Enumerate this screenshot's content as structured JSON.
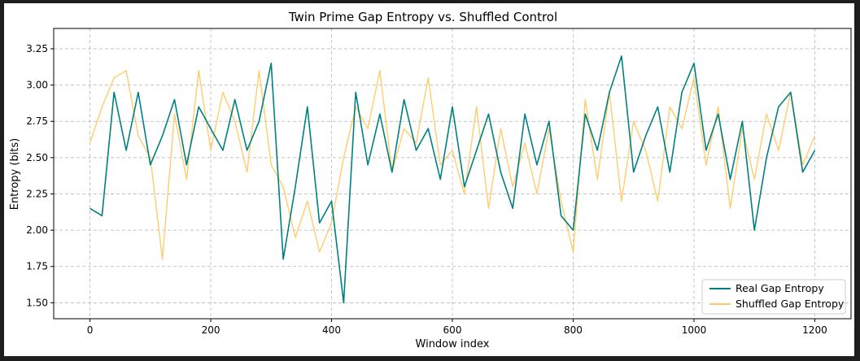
{
  "chart_data": {
    "type": "line",
    "title": "Twin Prime Gap Entropy vs. Shuffled Control",
    "xlabel": "Window index",
    "ylabel": "Entropy (bits)",
    "xlim": [
      -60,
      1260
    ],
    "ylim": [
      1.39,
      3.39
    ],
    "xticks": [
      0,
      200,
      400,
      600,
      800,
      1000,
      1200
    ],
    "yticks": [
      1.5,
      1.75,
      2.0,
      2.25,
      2.5,
      2.75,
      3.0,
      3.25
    ],
    "grid": true,
    "legend": "lower-right",
    "series": [
      {
        "name": "Real Gap Entropy",
        "color": "#008080",
        "x": [
          0,
          20,
          40,
          60,
          80,
          100,
          120,
          140,
          160,
          180,
          200,
          220,
          240,
          260,
          280,
          300,
          320,
          340,
          360,
          380,
          400,
          420,
          440,
          460,
          480,
          500,
          520,
          540,
          560,
          580,
          600,
          620,
          640,
          660,
          680,
          700,
          720,
          740,
          760,
          780,
          800,
          820,
          840,
          860,
          880,
          900,
          920,
          940,
          960,
          980,
          1000,
          1020,
          1040,
          1060,
          1080,
          1100,
          1120,
          1140,
          1160,
          1180,
          1200
        ],
        "y": [
          2.15,
          2.1,
          2.95,
          2.55,
          2.95,
          2.45,
          2.65,
          2.9,
          2.45,
          2.85,
          2.7,
          2.55,
          2.9,
          2.55,
          2.75,
          3.15,
          1.8,
          2.3,
          2.85,
          2.05,
          2.2,
          1.5,
          2.95,
          2.45,
          2.8,
          2.4,
          2.9,
          2.55,
          2.7,
          2.35,
          2.85,
          2.3,
          2.55,
          2.8,
          2.4,
          2.15,
          2.8,
          2.45,
          2.75,
          2.1,
          2.0,
          2.8,
          2.55,
          2.95,
          3.2,
          2.4,
          2.65,
          2.85,
          2.4,
          2.95,
          3.15,
          2.55,
          2.8,
          2.35,
          2.75,
          2.0,
          2.5,
          2.85,
          2.95,
          2.4,
          2.55
        ]
      },
      {
        "name": "Shuffled Gap Entropy",
        "color": "#ffc966",
        "x": [
          0,
          20,
          40,
          60,
          80,
          100,
          120,
          140,
          160,
          180,
          200,
          220,
          240,
          260,
          280,
          300,
          320,
          340,
          360,
          380,
          400,
          420,
          440,
          460,
          480,
          500,
          520,
          540,
          560,
          580,
          600,
          620,
          640,
          660,
          680,
          700,
          720,
          740,
          760,
          780,
          800,
          820,
          840,
          860,
          880,
          900,
          920,
          940,
          960,
          980,
          1000,
          1020,
          1040,
          1060,
          1080,
          1100,
          1120,
          1140,
          1160,
          1180,
          1200
        ],
        "y": [
          2.6,
          2.85,
          3.05,
          3.1,
          2.65,
          2.5,
          1.8,
          2.8,
          2.35,
          3.1,
          2.55,
          2.95,
          2.75,
          2.4,
          3.1,
          2.45,
          2.3,
          1.95,
          2.2,
          1.85,
          2.05,
          2.5,
          2.85,
          2.7,
          3.1,
          2.4,
          2.7,
          2.6,
          3.05,
          2.45,
          2.55,
          2.25,
          2.85,
          2.15,
          2.7,
          2.3,
          2.6,
          2.25,
          2.7,
          2.2,
          1.85,
          2.9,
          2.35,
          2.95,
          2.2,
          2.75,
          2.55,
          2.2,
          2.85,
          2.7,
          3.05,
          2.45,
          2.85,
          2.15,
          2.7,
          2.35,
          2.8,
          2.55,
          2.95,
          2.45,
          2.65
        ]
      }
    ]
  }
}
